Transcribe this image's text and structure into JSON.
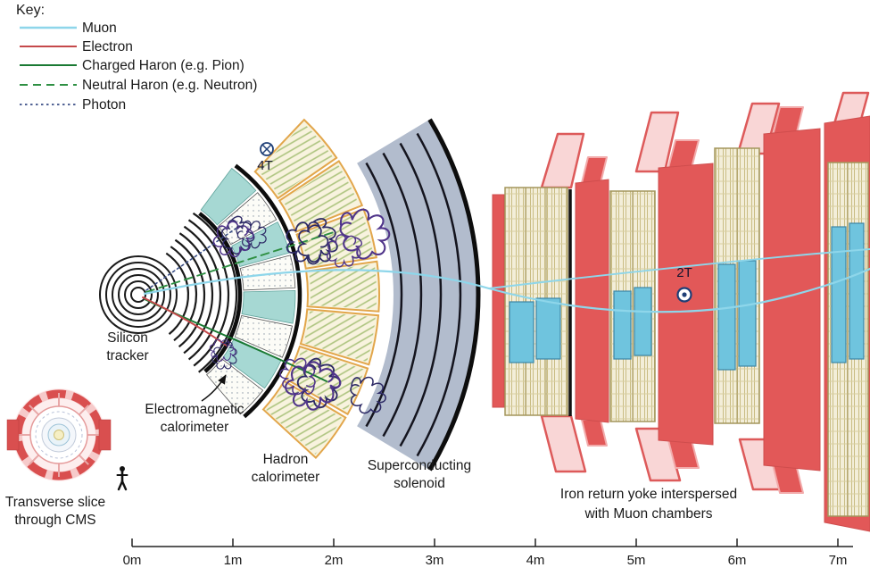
{
  "key": {
    "title": "Key:",
    "entries": [
      {
        "label": "Muon",
        "color": "#8ed6ea",
        "style": "solid"
      },
      {
        "label": "Electron",
        "color": "#c5494b",
        "style": "solid"
      },
      {
        "label": "Charged Haron (e.g. Pion)",
        "color": "#1a7a33",
        "style": "solid"
      },
      {
        "label": "Neutral Haron (e.g. Neutron)",
        "color": "#2f9043",
        "style": "dashed"
      },
      {
        "label": "Photon",
        "color": "#3b4f86",
        "style": "dotted"
      }
    ]
  },
  "field_markers": {
    "solenoid": {
      "label": "4T",
      "symbol": "field-into-page"
    },
    "yoke": {
      "label": "2T",
      "symbol": "field-out-of-page"
    }
  },
  "labels": {
    "silicon_tracker": [
      "Silicon",
      "tracker"
    ],
    "em_calorimeter": [
      "Electromagnetic",
      "calorimeter"
    ],
    "hadron_calorimeter": [
      "Hadron",
      "calorimeter"
    ],
    "solenoid": [
      "Superconducting",
      "solenoid"
    ],
    "iron_yoke": [
      "Iron return yoke interspersed",
      "with Muon chambers"
    ]
  },
  "inset": {
    "caption": [
      "Transverse slice",
      "through CMS"
    ]
  },
  "axis": {
    "ticks": [
      "0m",
      "1m",
      "2m",
      "3m",
      "4m",
      "5m",
      "6m",
      "7m"
    ]
  },
  "colors": {
    "ecal_teal": "#a6d8d3",
    "hcal_cream": "#f8f3de",
    "hcal_orange": "#e2a64b",
    "solenoid_gray": "#b2bccd",
    "yoke_red": "#e25858",
    "yoke_pink": "#f9d6d6",
    "chamber_tan": "#f3eed9",
    "chamber_blue": "#6fc4de",
    "shower_navy": "#2d2a66"
  }
}
